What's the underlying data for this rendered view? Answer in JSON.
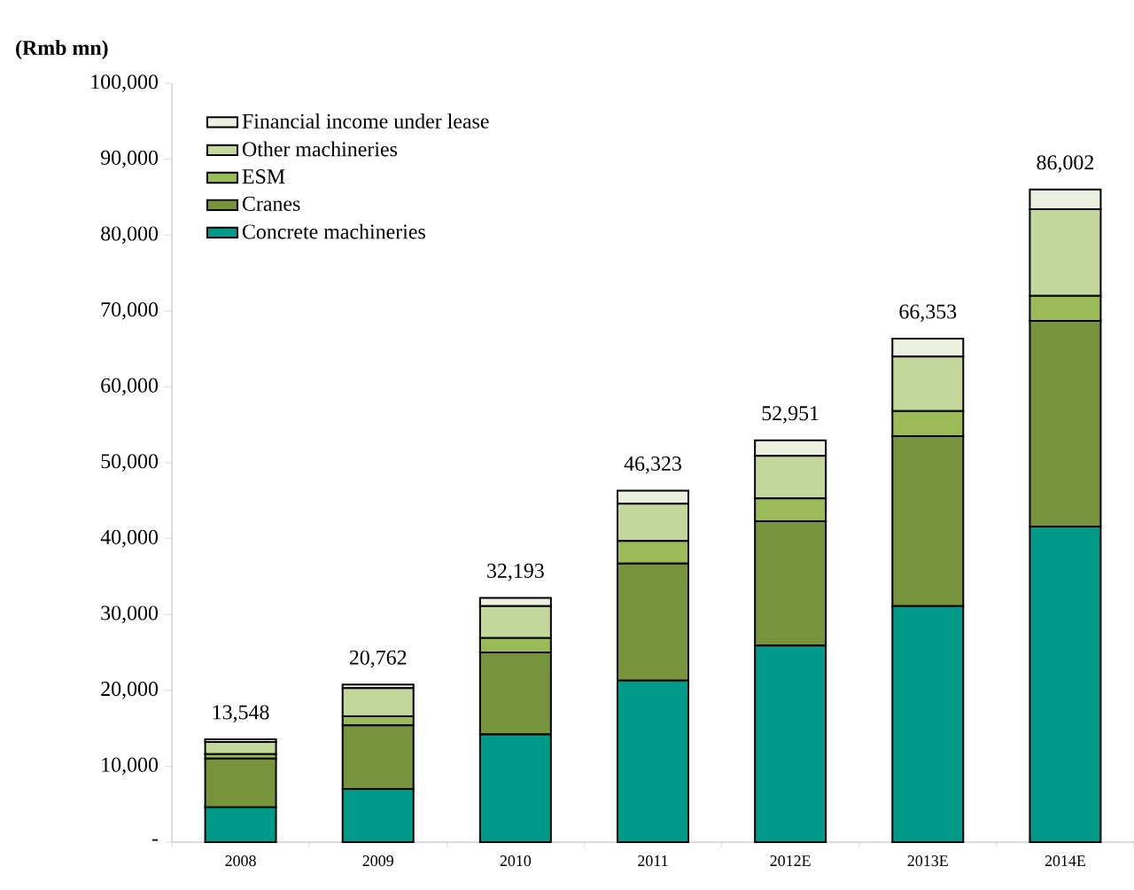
{
  "chart_data": {
    "type": "bar",
    "stacked": true,
    "ylabel": "(Rmb mn)",
    "categories": [
      "2008",
      "2009",
      "2010",
      "2011",
      "2012E",
      "2013E",
      "2014E"
    ],
    "series": [
      {
        "name": "Concrete machineries",
        "color": "#009a8a",
        "values": [
          4600,
          7000,
          14200,
          21300,
          25900,
          31100,
          41600
        ]
      },
      {
        "name": "Cranes",
        "color": "#77933c",
        "values": [
          6400,
          8400,
          10800,
          15400,
          16400,
          22400,
          27100
        ]
      },
      {
        "name": "ESM",
        "color": "#9bbb59",
        "values": [
          600,
          1200,
          1900,
          3000,
          3000,
          3300,
          3300
        ]
      },
      {
        "name": "Other machineries",
        "color": "#c4d79b",
        "values": [
          1600,
          3700,
          4200,
          4900,
          5600,
          7200,
          11400
        ]
      },
      {
        "name": "Financial income under lease",
        "color": "#ebf1de",
        "values": [
          348,
          462,
          1093,
          1723,
          2051,
          2353,
          2602
        ]
      }
    ],
    "totals": [
      "13,548",
      "20,762",
      "32,193",
      "46,323",
      "52,951",
      "66,353",
      "86,002"
    ],
    "ylim": [
      0,
      100000
    ],
    "yticks": [
      {
        "value": 0,
        "label": "-"
      },
      {
        "value": 10000,
        "label": "10,000"
      },
      {
        "value": 20000,
        "label": "20,000"
      },
      {
        "value": 30000,
        "label": "30,000"
      },
      {
        "value": 40000,
        "label": "40,000"
      },
      {
        "value": 50000,
        "label": "50,000"
      },
      {
        "value": 60000,
        "label": "60,000"
      },
      {
        "value": 70000,
        "label": "70,000"
      },
      {
        "value": 80000,
        "label": "80,000"
      },
      {
        "value": 90000,
        "label": "90,000"
      },
      {
        "value": 100000,
        "label": "100,000"
      }
    ],
    "legend": "top left"
  }
}
